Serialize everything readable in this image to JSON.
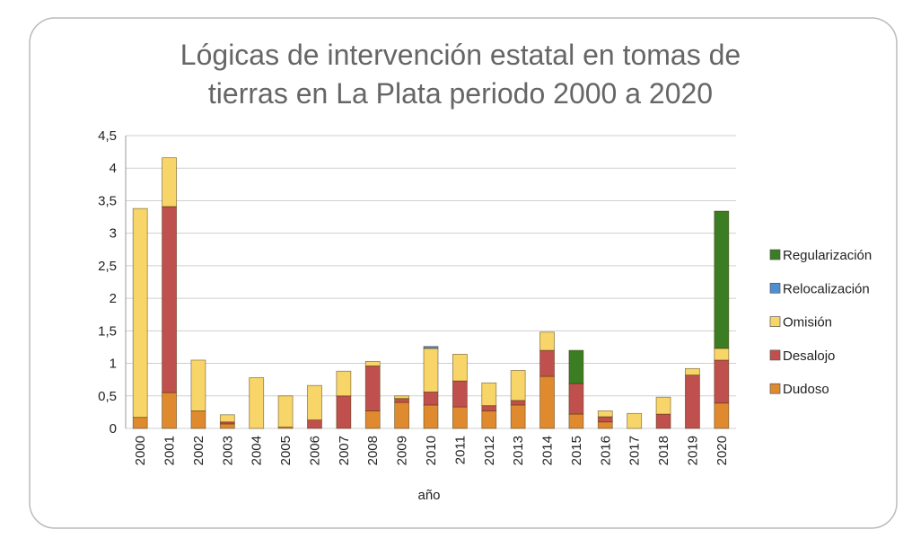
{
  "chart_data": {
    "type": "stacked-bar",
    "title": [
      "Lógicas de intervención estatal en tomas de",
      "tierras en La Plata periodo 2000 a 2020"
    ],
    "x_label": "año",
    "categories": [
      "2000",
      "2001",
      "2002",
      "2003",
      "2004",
      "2005",
      "2006",
      "2007",
      "2008",
      "2009",
      "2010",
      "2011",
      "2012",
      "2013",
      "2014",
      "2015",
      "2016",
      "2017",
      "2018",
      "2019",
      "2020"
    ],
    "series": [
      {
        "name": "Dudoso",
        "color": "#e08a30",
        "values": [
          0.17,
          0.55,
          0.27,
          0.07,
          0,
          0.02,
          0,
          0,
          0.27,
          0.4,
          0.36,
          0.33,
          0.27,
          0.36,
          0.8,
          0.22,
          0.1,
          0,
          0,
          0,
          0.39
        ]
      },
      {
        "name": "Desalojo",
        "color": "#c0504d",
        "values": [
          0,
          2.86,
          0,
          0.03,
          0,
          0,
          0.13,
          0.5,
          0.69,
          0.06,
          0.2,
          0.4,
          0.08,
          0.07,
          0.4,
          0.47,
          0.08,
          0,
          0.22,
          0.82,
          0.66
        ]
      },
      {
        "name": "Omisión",
        "color": "#f8d568",
        "values": [
          3.21,
          0.75,
          0.78,
          0.11,
          0.78,
          0.48,
          0.53,
          0.38,
          0.07,
          0.04,
          0.67,
          0.41,
          0.35,
          0.46,
          0.28,
          0,
          0.09,
          0.23,
          0.26,
          0.1,
          0.18
        ]
      },
      {
        "name": "Relocalización",
        "color": "#4f8fd1",
        "values": [
          0,
          0,
          0,
          0,
          0,
          0,
          0,
          0,
          0,
          0,
          0.03,
          0,
          0,
          0,
          0,
          0,
          0,
          0,
          0,
          0,
          0
        ]
      },
      {
        "name": "Regularización",
        "color": "#3a7d23",
        "values": [
          0,
          0,
          0,
          0,
          0,
          0,
          0,
          0,
          0,
          0,
          0,
          0,
          0,
          0,
          0,
          0.51,
          0,
          0,
          0,
          0,
          2.11
        ]
      }
    ],
    "ylim": [
      0,
      4.5
    ],
    "yticks": [
      0,
      {
        "value": 0.5,
        "label": "0,5"
      },
      1,
      {
        "value": 1.5,
        "label": "1,5"
      },
      2,
      {
        "value": 2.5,
        "label": "2,5"
      },
      3,
      {
        "value": 3.5,
        "label": "3,5"
      },
      4,
      {
        "value": 4.5,
        "label": "4,5"
      }
    ],
    "grid": true,
    "legend": "right"
  }
}
